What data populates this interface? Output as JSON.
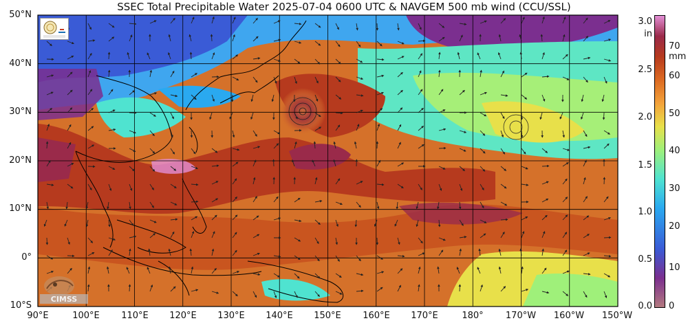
{
  "title": "SSEC Total Precipitable Water  2025-07-04 0600 UTC & NAVGEM 500 mb wind (CCU/SSL)",
  "map": {
    "lon_range": [
      90,
      210
    ],
    "lat_range": [
      -10,
      50
    ],
    "lat_labels": [
      "50°N",
      "40°N",
      "30°N",
      "20°N",
      "10°N",
      "0°",
      "10°S"
    ],
    "lon_labels": [
      "90°E",
      "100°E",
      "110°E",
      "120°E",
      "130°E",
      "140°E",
      "150°E",
      "160°E",
      "170°E",
      "180°",
      "170°W",
      "160°W",
      "150°W"
    ]
  },
  "colorbar": {
    "inches_unit": "in",
    "mm_unit": "mm",
    "inches_ticks": [
      "3.0",
      "2.5",
      "2.0",
      "1.5",
      "1.0",
      "0.5",
      "0.0"
    ],
    "mm_ticks": [
      "70",
      "60",
      "50",
      "40",
      "30",
      "20",
      "10",
      "0"
    ],
    "colors": [
      "#b3797f",
      "#7b2f8f",
      "#3a5bd6",
      "#2aa9f0",
      "#4fe3d0",
      "#9ff07a",
      "#e8e04a",
      "#f3a23a",
      "#dc6a22",
      "#b63a1e",
      "#9a2a4a",
      "#e38fd6"
    ]
  },
  "logos": {
    "institution": "institution-seal",
    "cimss_text": "CIMSS"
  }
}
